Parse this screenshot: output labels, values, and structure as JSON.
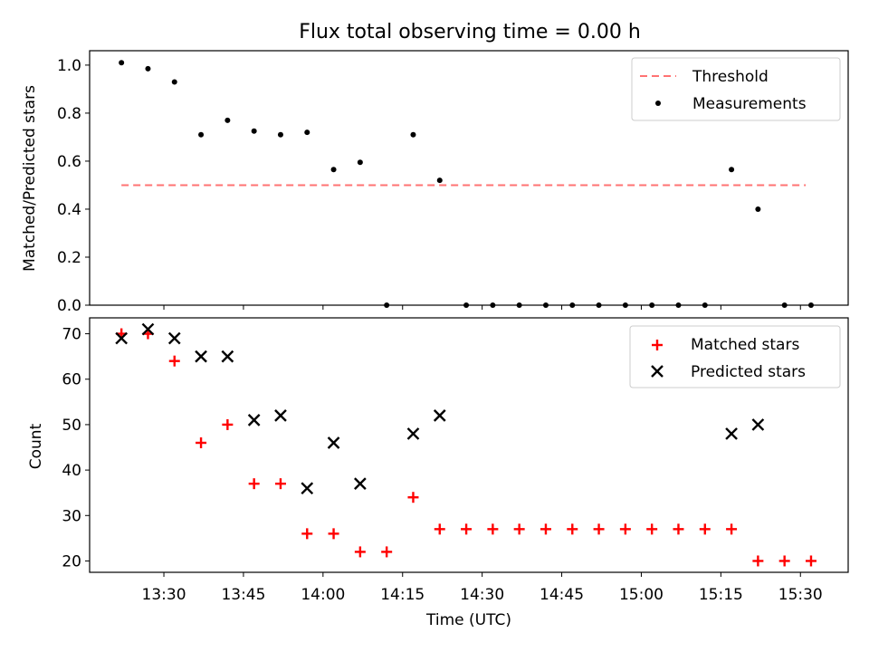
{
  "title": "Flux total observing time = 0.00 h",
  "chart_data": [
    {
      "type": "scatter",
      "panel": "top",
      "ylabel": "Matched/Predicted stars",
      "xlabel": "",
      "ylim": [
        0,
        1.06
      ],
      "yticks": [
        "0.0",
        "0.2",
        "0.4",
        "0.6",
        "0.8",
        "1.0"
      ],
      "ytick_values": [
        0,
        0.2,
        0.4,
        0.6,
        0.8,
        1.0
      ],
      "grid": false,
      "legend_placement": "top-right",
      "threshold": {
        "name": "Threshold",
        "value": 0.5,
        "x_start": "13:22",
        "x_end": "15:31",
        "color": "#ff7373",
        "style": "dashed"
      },
      "series": [
        {
          "name": "Measurements",
          "color": "#000000",
          "marker": "dot",
          "x": [
            "13:22",
            "13:27",
            "13:32",
            "13:37",
            "13:42",
            "13:47",
            "13:52",
            "13:57",
            "14:02",
            "14:07",
            "14:12",
            "14:17",
            "14:22",
            "14:27",
            "14:32",
            "14:37",
            "14:42",
            "14:47",
            "14:52",
            "14:57",
            "15:02",
            "15:07",
            "15:12",
            "15:17",
            "15:22",
            "15:27",
            "15:32"
          ],
          "y": [
            1.01,
            0.985,
            0.93,
            0.71,
            0.77,
            0.725,
            0.71,
            0.72,
            0.565,
            0.595,
            0.0,
            0.71,
            0.52,
            0.0,
            0.0,
            0.0,
            0.0,
            0.0,
            0.0,
            0.0,
            0.0,
            0.0,
            0.0,
            0.565,
            0.4,
            0.0,
            0.0
          ]
        }
      ]
    },
    {
      "type": "scatter",
      "panel": "bottom",
      "ylabel": "Count",
      "xlabel": "Time (UTC)",
      "ylim": [
        17.5,
        73.5
      ],
      "yticks": [
        "20",
        "30",
        "40",
        "50",
        "60",
        "70"
      ],
      "ytick_values": [
        20,
        30,
        40,
        50,
        60,
        70
      ],
      "xticks": [
        "13:30",
        "13:45",
        "14:00",
        "14:15",
        "14:30",
        "14:45",
        "15:00",
        "15:15",
        "15:30"
      ],
      "xlim": [
        "13:16",
        "15:39"
      ],
      "grid": false,
      "legend_placement": "top-right",
      "series": [
        {
          "name": "Matched stars",
          "color": "#ff0000",
          "marker": "plus",
          "x": [
            "13:22",
            "13:27",
            "13:32",
            "13:37",
            "13:42",
            "13:47",
            "13:52",
            "13:57",
            "14:02",
            "14:07",
            "14:12",
            "14:17",
            "14:22",
            "14:27",
            "14:32",
            "14:37",
            "14:42",
            "14:47",
            "14:52",
            "14:57",
            "15:02",
            "15:07",
            "15:12",
            "15:17",
            "15:22",
            "15:27",
            "15:32"
          ],
          "y": [
            70,
            70,
            64,
            46,
            50,
            37,
            37,
            26,
            26,
            22,
            22,
            34,
            27,
            27,
            27,
            27,
            27,
            27,
            27,
            27,
            27,
            27,
            27,
            27,
            20,
            20,
            20
          ]
        },
        {
          "name": "Predicted stars",
          "color": "#000000",
          "marker": "x",
          "x": [
            "13:22",
            "13:27",
            "13:32",
            "13:37",
            "13:42",
            "13:47",
            "13:52",
            "13:57",
            "14:02",
            "14:07",
            "14:17",
            "14:22",
            "15:17",
            "15:22"
          ],
          "y": [
            69,
            71,
            69,
            65,
            65,
            51,
            52,
            36,
            46,
            37,
            48,
            52,
            48,
            50
          ]
        }
      ]
    }
  ]
}
